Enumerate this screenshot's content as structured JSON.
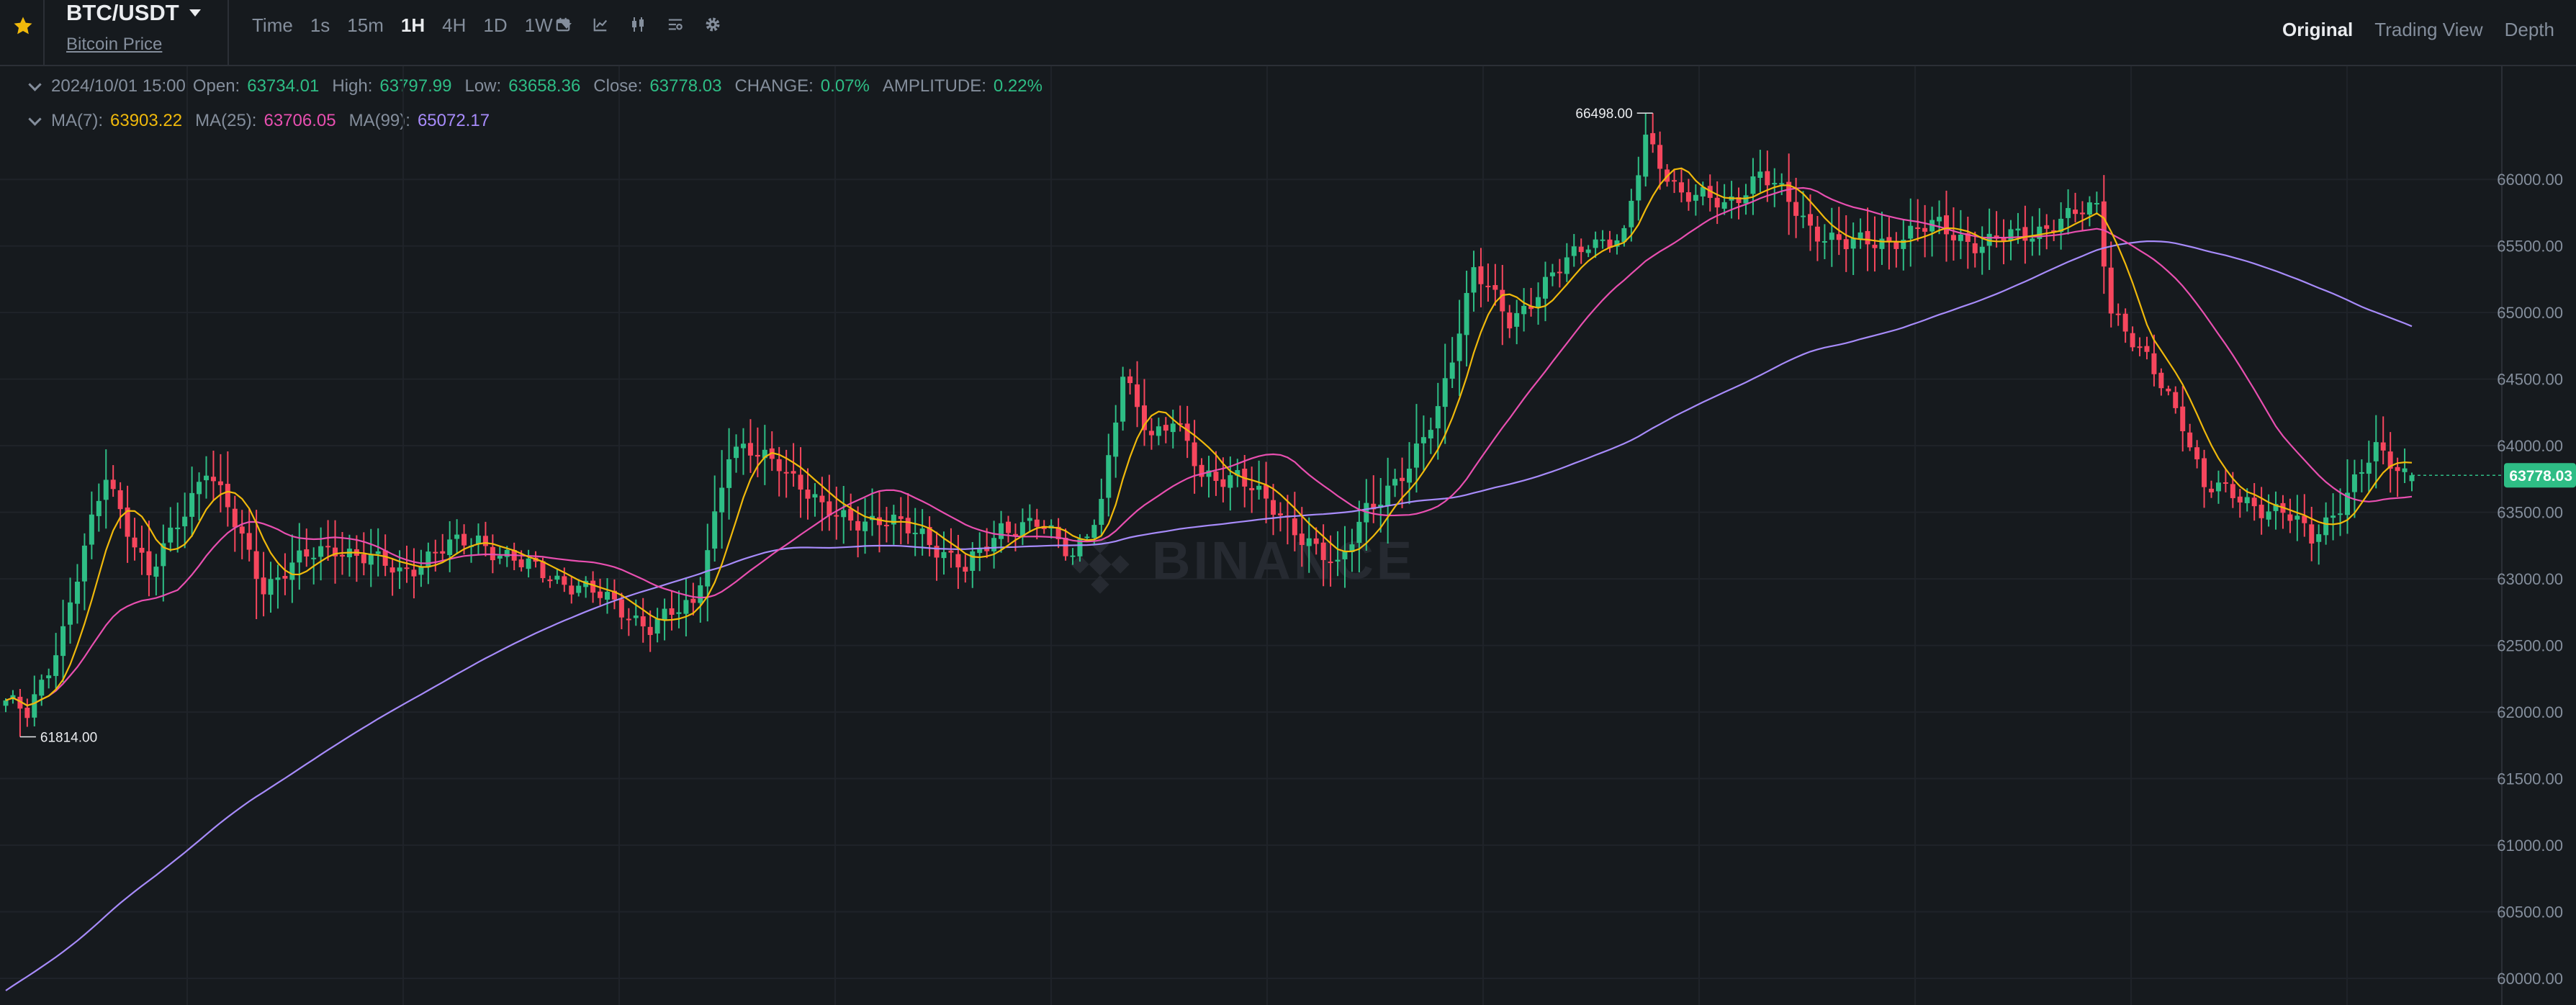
{
  "header": {
    "pair": "BTC/USDT",
    "sublink": "Bitcoin Price",
    "intervals": [
      "Time",
      "1s",
      "15m",
      "1H",
      "4H",
      "1D",
      "1W"
    ],
    "active_interval": "1H",
    "views": [
      "Original",
      "Trading View",
      "Depth"
    ],
    "active_view": "Original",
    "tool_icons": [
      "calendar-icon",
      "indicator-icon",
      "candle-type-icon",
      "settings-list-icon",
      "gear-icon"
    ]
  },
  "ohlc": {
    "date": "2024/10/01 15:00",
    "open_label": "Open:",
    "open": "63734.01",
    "high_label": "High:",
    "high": "63797.99",
    "low_label": "Low:",
    "low": "63658.36",
    "close_label": "Close:",
    "close": "63778.03",
    "change_label": "CHANGE:",
    "change": "0.07%",
    "amplitude_label": "AMPLITUDE:",
    "amplitude": "0.22%"
  },
  "ma": {
    "ma7_label": "MA(7):",
    "ma7": "63903.22",
    "ma25_label": "MA(25):",
    "ma25": "63706.05",
    "ma99_label": "MA(99):",
    "ma99": "65072.17"
  },
  "colors": {
    "up": "#2ebd85",
    "down": "#f6465d",
    "ma7": "#f0b90b",
    "ma25": "#e84fb0",
    "ma99": "#a78bfa",
    "bg": "#161a1e",
    "grid": "#1f2329",
    "text": "#848e9c",
    "text_bright": "#eaecef"
  },
  "watermark": "BINANCE",
  "chart_data": {
    "type": "candlestick",
    "y_ticks": [
      "66000.00",
      "65500.00",
      "65000.00",
      "64500.00",
      "64000.00",
      "63500.00",
      "63000.00",
      "62500.00",
      "62000.00",
      "61500.00",
      "61000.00",
      "60500.00",
      "60000.00"
    ],
    "ylim": [
      59800,
      66850
    ],
    "last_price": "63778.03",
    "max_label": "66498.00",
    "min_label": "61814.00",
    "anchors": [
      [
        0,
        62050
      ],
      [
        3,
        62000
      ],
      [
        8,
        62600
      ],
      [
        14,
        63800
      ],
      [
        20,
        63000
      ],
      [
        28,
        63850
      ],
      [
        36,
        62950
      ],
      [
        40,
        63100
      ],
      [
        46,
        63250
      ],
      [
        55,
        63050
      ],
      [
        60,
        63200
      ],
      [
        66,
        63300
      ],
      [
        72,
        63100
      ],
      [
        80,
        62950
      ],
      [
        90,
        62650
      ],
      [
        96,
        62800
      ],
      [
        101,
        63950
      ],
      [
        108,
        63900
      ],
      [
        114,
        63500
      ],
      [
        120,
        63450
      ],
      [
        128,
        63350
      ],
      [
        134,
        63050
      ],
      [
        139,
        63400
      ],
      [
        144,
        63400
      ],
      [
        149,
        63200
      ],
      [
        153,
        63550
      ],
      [
        156,
        64500
      ],
      [
        160,
        64100
      ],
      [
        163,
        64200
      ],
      [
        167,
        63750
      ],
      [
        172,
        63800
      ],
      [
        176,
        63550
      ],
      [
        182,
        63300
      ],
      [
        186,
        63050
      ],
      [
        190,
        63550
      ],
      [
        196,
        63800
      ],
      [
        200,
        64300
      ],
      [
        205,
        65300
      ],
      [
        210,
        64950
      ],
      [
        215,
        65200
      ],
      [
        221,
        65550
      ],
      [
        226,
        65550
      ],
      [
        229,
        66300
      ],
      [
        234,
        65900
      ],
      [
        240,
        65800
      ],
      [
        245,
        66050
      ],
      [
        252,
        65650
      ],
      [
        257,
        65500
      ],
      [
        263,
        65550
      ],
      [
        270,
        65650
      ],
      [
        276,
        65500
      ],
      [
        282,
        65600
      ],
      [
        288,
        65700
      ],
      [
        292,
        65800
      ],
      [
        294,
        65050
      ],
      [
        298,
        64700
      ],
      [
        304,
        64200
      ],
      [
        307,
        63700
      ],
      [
        312,
        63600
      ],
      [
        318,
        63500
      ],
      [
        322,
        63300
      ],
      [
        327,
        63650
      ],
      [
        331,
        63950
      ],
      [
        334,
        63850
      ],
      [
        336,
        63778.03
      ]
    ],
    "ma7_end": "63903.22",
    "ma25_end": "63706.05",
    "ma99_end": "65072.17"
  }
}
